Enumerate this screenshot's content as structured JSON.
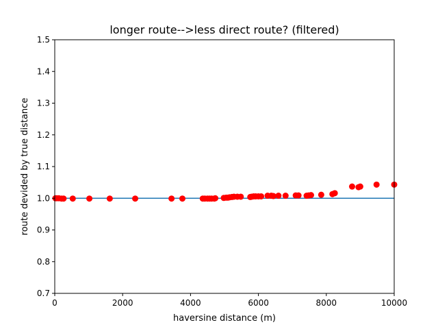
{
  "chart_data": {
    "type": "scatter",
    "title": "longer route-->less direct route? (filtered)",
    "xlabel": "haversine distance (m)",
    "ylabel": "route devided by true distance",
    "xlim": [
      0,
      10000
    ],
    "ylim": [
      0.7,
      1.5
    ],
    "xticks": [
      "0",
      "2000",
      "4000",
      "6000",
      "8000",
      "10000"
    ],
    "yticks": [
      "0.7",
      "0.8",
      "0.9",
      "1.0",
      "1.1",
      "1.2",
      "1.3",
      "1.4",
      "1.5"
    ],
    "grid": false,
    "series": [
      {
        "color": "#ff0000",
        "marker": "circle",
        "x": [
          20,
          60,
          120,
          200,
          260,
          530,
          1020,
          1620,
          2370,
          3440,
          3760,
          4360,
          4420,
          4500,
          4560,
          4620,
          4700,
          4730,
          4980,
          5050,
          5100,
          5150,
          5220,
          5280,
          5380,
          5480,
          5760,
          5800,
          5860,
          5920,
          6000,
          6080,
          6270,
          6380,
          6440,
          6590,
          6800,
          7100,
          7180,
          7420,
          7480,
          7550,
          7850,
          8180,
          8250,
          8760,
          8950,
          9000,
          9480,
          10000
        ],
        "y": [
          1.0,
          1.0,
          1.0,
          0.999,
          0.999,
          0.999,
          0.999,
          0.999,
          0.999,
          0.999,
          0.999,
          0.999,
          0.999,
          0.999,
          0.999,
          0.999,
          0.999,
          1.0,
          1.001,
          1.002,
          1.002,
          1.003,
          1.004,
          1.005,
          1.005,
          1.005,
          1.004,
          1.005,
          1.006,
          1.006,
          1.006,
          1.006,
          1.008,
          1.008,
          1.007,
          1.008,
          1.008,
          1.009,
          1.009,
          1.008,
          1.009,
          1.01,
          1.011,
          1.013,
          1.016,
          1.037,
          1.035,
          1.037,
          1.043,
          1.043
        ]
      },
      {
        "color": "#1f77b4",
        "marker": "line",
        "x": [
          0,
          10000
        ],
        "y": [
          1.0,
          1.0
        ]
      }
    ]
  }
}
